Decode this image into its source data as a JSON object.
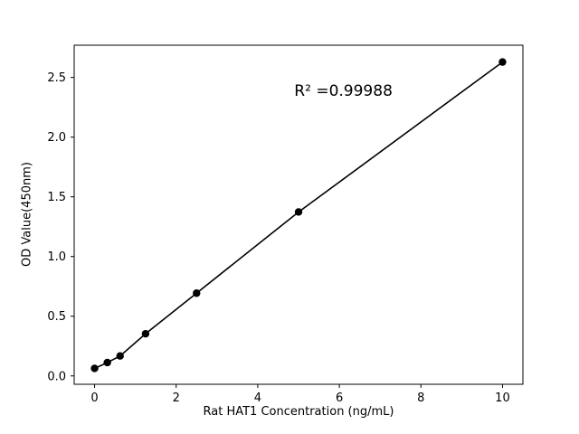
{
  "chart_data": {
    "type": "scatter",
    "title": "",
    "xlabel": "Rat HAT1 Concentration (ng/mL)",
    "ylabel": "OD Value(450nm)",
    "x": [
      0,
      0.313,
      0.625,
      1.25,
      2.5,
      5,
      10
    ],
    "y": [
      0.063,
      0.112,
      0.167,
      0.353,
      0.693,
      1.373,
      2.629
    ],
    "xlim": [
      -0.5,
      10.5
    ],
    "ylim": [
      -0.07,
      2.77
    ],
    "xticks": [
      0,
      2,
      4,
      6,
      8,
      10
    ],
    "yticks": [
      0.0,
      0.5,
      1.0,
      1.5,
      2.0,
      2.5
    ],
    "grid": false,
    "legend": "none",
    "marker_color": "#000000",
    "line_color": "#000000",
    "annotation": {
      "text": "R² =0.99988",
      "x": 6.1,
      "y": 2.38
    }
  }
}
